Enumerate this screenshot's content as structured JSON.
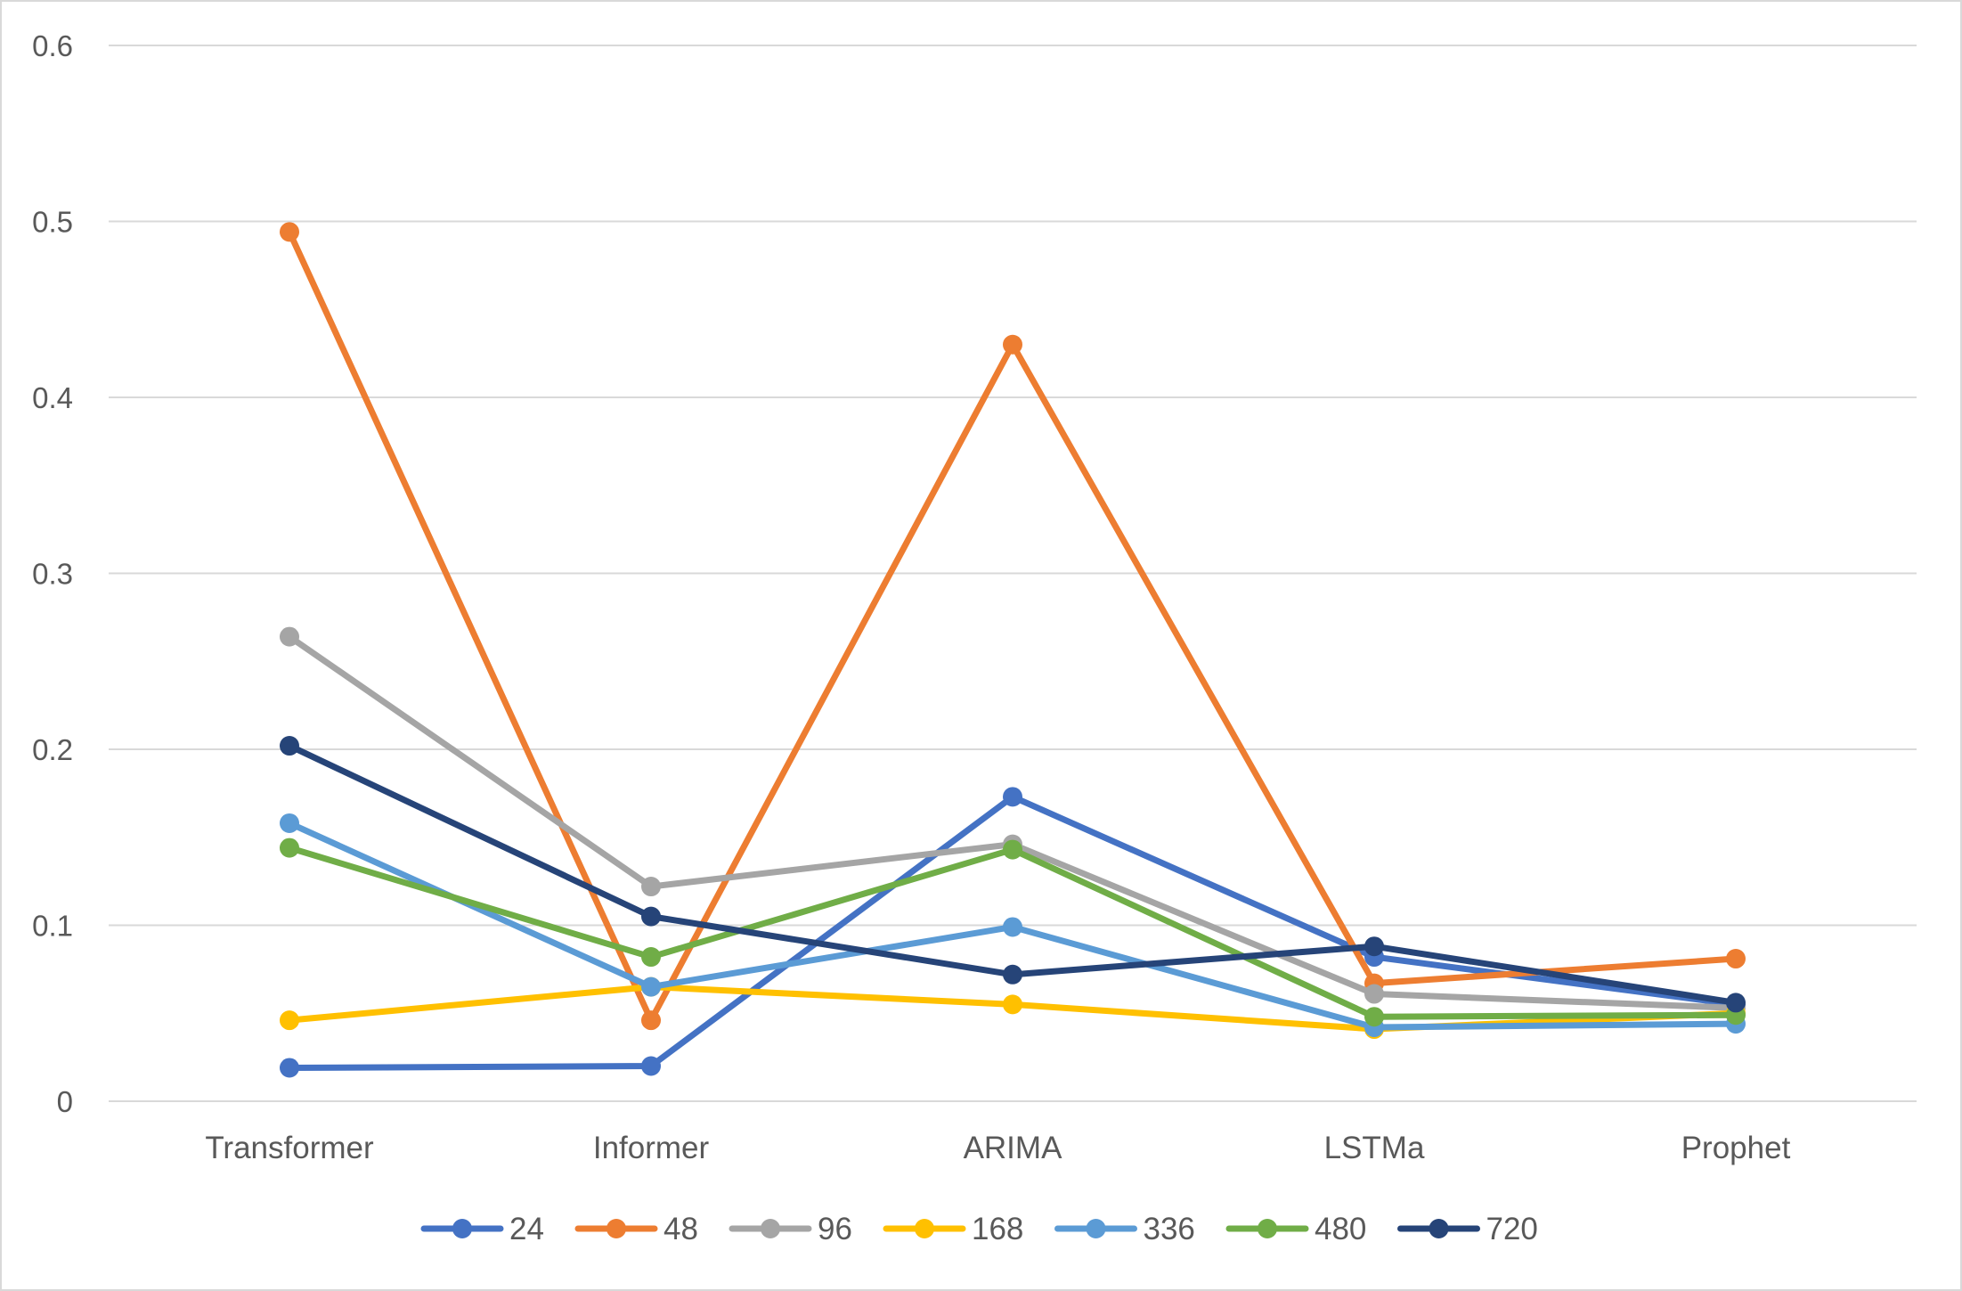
{
  "chart_data": {
    "type": "line",
    "title": "",
    "xlabel": "",
    "ylabel": "",
    "categories": [
      "Transformer",
      "Informer",
      "ARIMA",
      "LSTMa",
      "Prophet"
    ],
    "ylim": [
      0,
      0.6
    ],
    "yticks": [
      0,
      0.1,
      0.2,
      0.3,
      0.4,
      0.5,
      0.6
    ],
    "ytick_labels": [
      "0",
      "0.1",
      "0.2",
      "0.3",
      "0.4",
      "0.5",
      "0.6"
    ],
    "grid": true,
    "legend_position": "bottom",
    "series": [
      {
        "name": "24",
        "color": "#4472C4",
        "values": [
          0.019,
          0.02,
          0.173,
          0.082,
          0.055
        ]
      },
      {
        "name": "48",
        "color": "#ED7D31",
        "values": [
          0.494,
          0.046,
          0.43,
          0.067,
          0.081
        ]
      },
      {
        "name": "96",
        "color": "#A5A5A5",
        "values": [
          0.264,
          0.122,
          0.146,
          0.061,
          0.053
        ]
      },
      {
        "name": "168",
        "color": "#FFC000",
        "values": [
          0.046,
          0.065,
          0.055,
          0.041,
          0.05
        ]
      },
      {
        "name": "336",
        "color": "#5B9BD5",
        "values": [
          0.158,
          0.065,
          0.099,
          0.042,
          0.044
        ]
      },
      {
        "name": "480",
        "color": "#70AD47",
        "values": [
          0.144,
          0.082,
          0.143,
          0.048,
          0.049
        ]
      },
      {
        "name": "720",
        "color": "#264478",
        "values": [
          0.202,
          0.105,
          0.072,
          0.088,
          0.056
        ]
      }
    ]
  }
}
